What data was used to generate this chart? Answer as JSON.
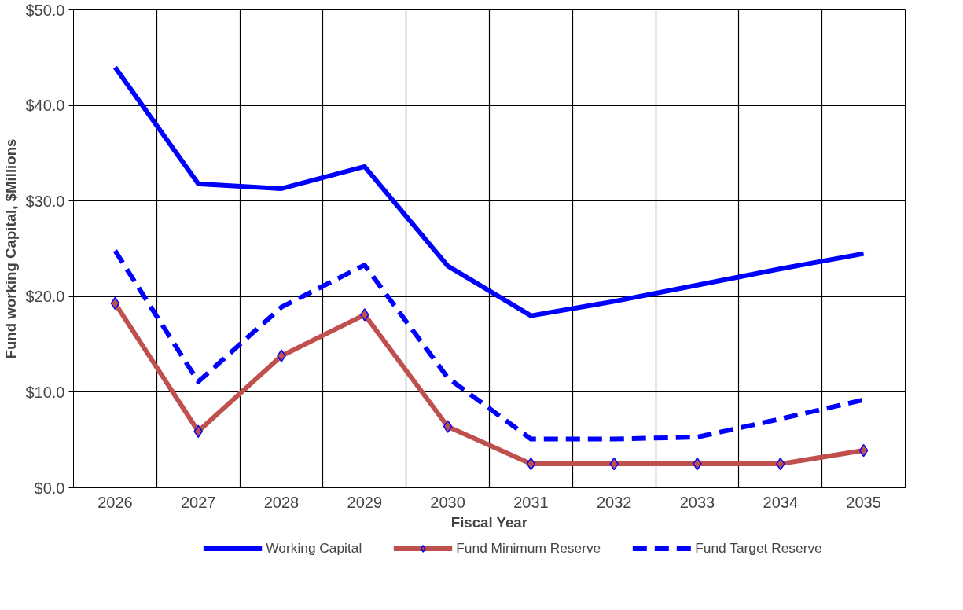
{
  "chart_data": {
    "type": "line",
    "xlabel": "Fiscal Year",
    "ylabel": "Fund working Capital, $Millions",
    "categories": [
      "2026",
      "2027",
      "2028",
      "2029",
      "2030",
      "2031",
      "2032",
      "2033",
      "2034",
      "2035"
    ],
    "series": [
      {
        "name": "Working Capital",
        "color": "#0000ff",
        "line_style": "solid",
        "marker": "none",
        "values": [
          44.0,
          31.8,
          31.3,
          33.6,
          23.2,
          18.0,
          19.5,
          21.2,
          22.9,
          24.5
        ]
      },
      {
        "name": "Fund Minimum Reserve",
        "color": "#c0504d",
        "line_style": "solid",
        "marker": "diamond",
        "values": [
          19.3,
          5.9,
          13.8,
          18.1,
          6.4,
          2.5,
          2.5,
          2.5,
          2.5,
          3.9
        ]
      },
      {
        "name": "Fund Target Reserve",
        "color": "#0000ff",
        "line_style": "dashed",
        "marker": "none",
        "values": [
          24.8,
          11.1,
          18.9,
          23.3,
          11.5,
          5.1,
          5.1,
          5.3,
          7.2,
          9.2
        ]
      }
    ],
    "ylim": [
      0,
      50
    ],
    "yticks": [
      {
        "value": 0,
        "label": "$0.0"
      },
      {
        "value": 10,
        "label": "$10.0"
      },
      {
        "value": 20,
        "label": "$20.0"
      },
      {
        "value": 30,
        "label": "$30.0"
      },
      {
        "value": 40,
        "label": "$40.0"
      },
      {
        "value": 50,
        "label": "$50.0"
      }
    ],
    "grid": true,
    "legend": "bottom"
  }
}
